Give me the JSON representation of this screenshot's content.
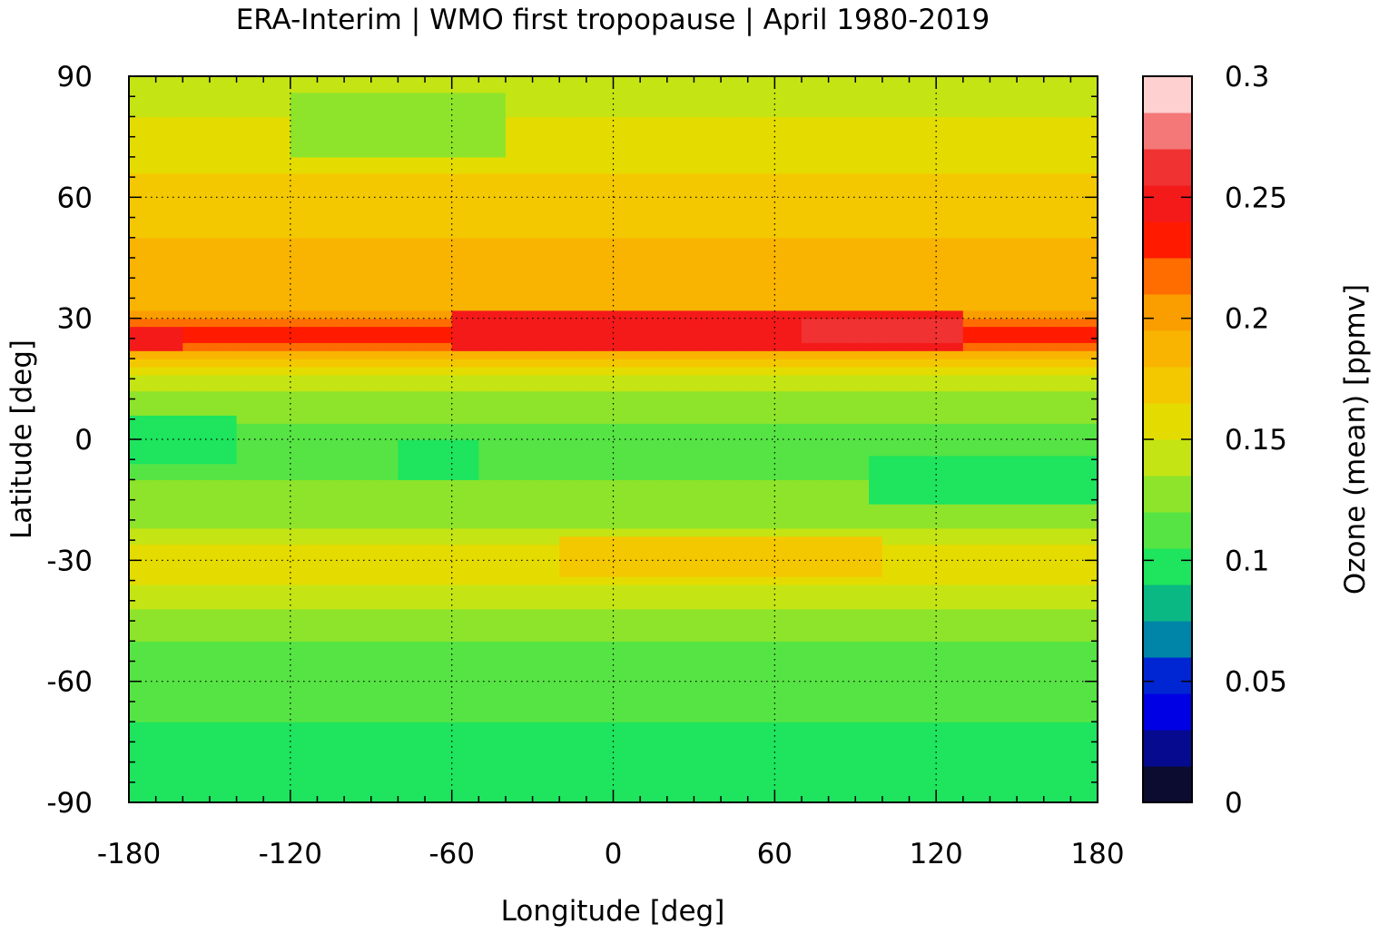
{
  "chart_data": {
    "type": "heatmap",
    "title": "ERA-Interim | WMO first tropopause | April 1980-2019",
    "xlabel": "Longitude [deg]",
    "ylabel": "Latitude [deg]",
    "xlim": [
      -180,
      180
    ],
    "ylim": [
      -90,
      90
    ],
    "x_ticks": [
      "-180",
      "-120",
      "-60",
      "0",
      "60",
      "120",
      "180"
    ],
    "y_ticks": [
      "90",
      "60",
      "30",
      "0",
      "-30",
      "-60",
      "-90"
    ],
    "grid": true,
    "colorbar": {
      "label": "Ozone (mean) [ppmv]",
      "range": [
        0,
        0.3
      ],
      "ticks": [
        "0.3",
        "0.25",
        "0.2",
        "0.15",
        "0.1",
        "0.05",
        "0"
      ],
      "levels": [
        0,
        0.015,
        0.03,
        0.045,
        0.06,
        0.075,
        0.09,
        0.105,
        0.12,
        0.135,
        0.15,
        0.165,
        0.18,
        0.195,
        0.21,
        0.225,
        0.24,
        0.255,
        0.27,
        0.285,
        0.3
      ],
      "colors": [
        "#0c0c30",
        "#060a8e",
        "#0000e4",
        "#0026d4",
        "#0084a8",
        "#0ab884",
        "#1ee45e",
        "#56e444",
        "#8ee42a",
        "#c4e414",
        "#e4dc00",
        "#f4c800",
        "#f8b400",
        "#fa9e00",
        "#ff6c00",
        "#ff1a00",
        "#f41a1a",
        "#f03232",
        "#f47878",
        "#ffd0d0"
      ]
    },
    "zonal_mean_profile": {
      "description_units": "ppmv",
      "lat": [
        -90,
        -80,
        -70,
        -60,
        -50,
        -40,
        -35,
        -30,
        -25,
        -20,
        -15,
        -10,
        -5,
        0,
        5,
        10,
        15,
        20,
        22,
        25,
        28,
        30,
        33,
        35,
        40,
        45,
        50,
        55,
        60,
        65,
        70,
        75,
        80,
        90
      ],
      "values": [
        0.1,
        0.1,
        0.105,
        0.118,
        0.12,
        0.14,
        0.155,
        0.16,
        0.145,
        0.13,
        0.12,
        0.12,
        0.115,
        0.115,
        0.12,
        0.13,
        0.145,
        0.17,
        0.2,
        0.235,
        0.24,
        0.2,
        0.19,
        0.19,
        0.19,
        0.185,
        0.18,
        0.175,
        0.17,
        0.165,
        0.16,
        0.15,
        0.15,
        0.145
      ]
    },
    "regional_anomalies": [
      {
        "lon": [
          -60,
          130
        ],
        "lat": [
          22,
          31
        ],
        "value": 0.25
      },
      {
        "lon": [
          -180,
          -160
        ],
        "lat": [
          22,
          27
        ],
        "value": 0.24
      },
      {
        "lon": [
          70,
          130
        ],
        "lat": [
          25,
          30
        ],
        "value": 0.265
      },
      {
        "lon": [
          -120,
          -40
        ],
        "lat": [
          70,
          85
        ],
        "value": 0.13
      },
      {
        "lon": [
          -180,
          -140
        ],
        "lat": [
          -5,
          5
        ],
        "value": 0.1
      },
      {
        "lon": [
          -80,
          -50
        ],
        "lat": [
          -10,
          0
        ],
        "value": 0.1
      },
      {
        "lon": [
          95,
          180
        ],
        "lat": [
          -15,
          -5
        ],
        "value": 0.1
      },
      {
        "lon": [
          -20,
          100
        ],
        "lat": [
          -33,
          -25
        ],
        "value": 0.165
      }
    ]
  }
}
